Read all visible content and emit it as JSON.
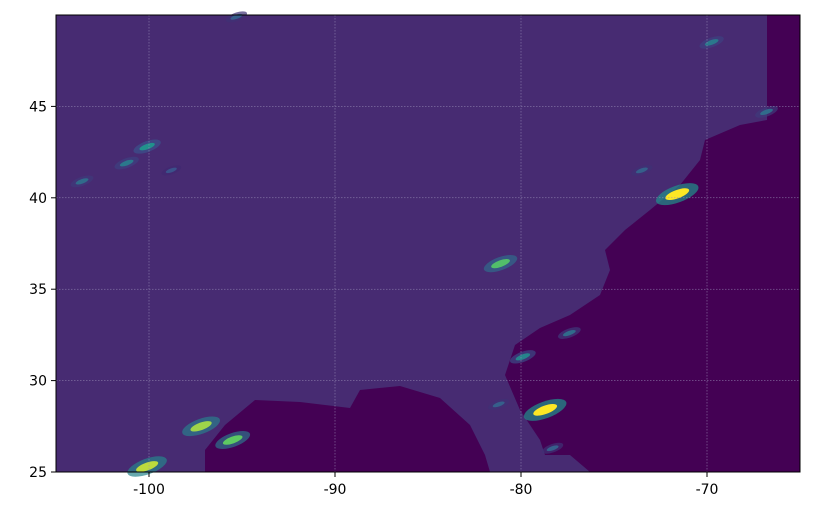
{
  "chart_data": {
    "type": "heatmap",
    "title": "",
    "xlabel": "",
    "ylabel": "",
    "xlim": [
      -105,
      -65
    ],
    "ylim": [
      25,
      50
    ],
    "xticks": [
      -100,
      -90,
      -80,
      -70
    ],
    "xtick_labels": [
      "-100",
      "-90",
      "-80",
      "-70"
    ],
    "yticks": [
      25,
      30,
      35,
      40,
      45
    ],
    "ytick_labels": [
      "25",
      "30",
      "35",
      "40",
      "45"
    ],
    "grid": true,
    "colormap": "viridis",
    "colors": {
      "background_value": "#472b72",
      "masked_region": "#440154",
      "grid": "#9a90b8"
    },
    "features": [
      {
        "lon": -100.1,
        "lat": 42.8,
        "value": 0.5
      },
      {
        "lon": -101.2,
        "lat": 41.9,
        "value": 0.4
      },
      {
        "lon": -103.6,
        "lat": 40.9,
        "value": 0.35
      },
      {
        "lon": -98.8,
        "lat": 41.5,
        "value": 0.25
      },
      {
        "lon": -71.6,
        "lat": 40.2,
        "value": 1.0
      },
      {
        "lon": -73.5,
        "lat": 41.5,
        "value": 0.3
      },
      {
        "lon": -78.7,
        "lat": 28.4,
        "value": 1.0
      },
      {
        "lon": -81.1,
        "lat": 36.4,
        "value": 0.7
      },
      {
        "lon": -100.1,
        "lat": 25.3,
        "value": 0.9
      },
      {
        "lon": -97.2,
        "lat": 27.5,
        "value": 0.85
      },
      {
        "lon": -95.5,
        "lat": 26.75,
        "value": 0.75
      },
      {
        "lon": -66.8,
        "lat": 44.7,
        "value": 0.35
      },
      {
        "lon": -79.9,
        "lat": 31.3,
        "value": 0.45
      },
      {
        "lon": -77.4,
        "lat": 32.6,
        "value": 0.35
      },
      {
        "lon": -81.2,
        "lat": 28.7,
        "value": 0.3
      },
      {
        "lon": -78.3,
        "lat": 26.3,
        "value": 0.3
      },
      {
        "lon": -69.75,
        "lat": 48.5,
        "value": 0.4
      },
      {
        "lon": -95.3,
        "lat": 49.9,
        "value": 0.3
      }
    ]
  }
}
